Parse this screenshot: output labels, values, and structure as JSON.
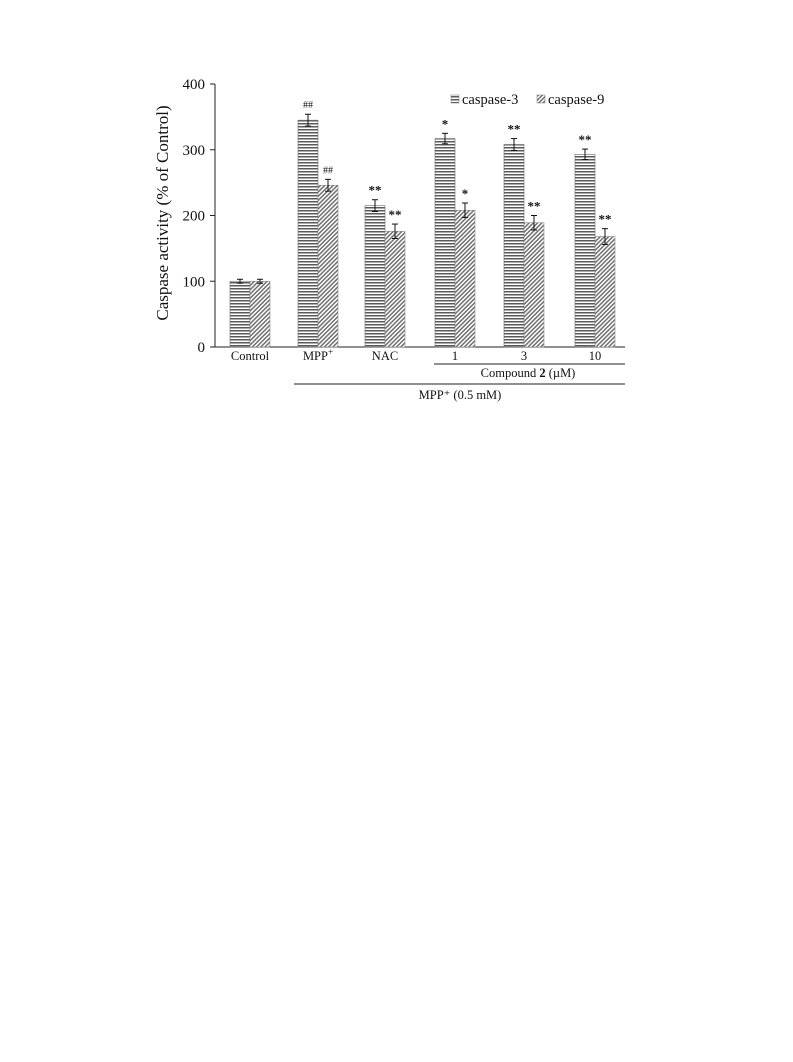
{
  "chart_data": {
    "type": "bar",
    "ylabel": "Caspase activity (% of Control)",
    "ylim": [
      0,
      400
    ],
    "yticks": [
      0,
      100,
      200,
      300,
      400
    ],
    "categories": [
      "Control",
      "MPP+",
      "NAC",
      "1",
      "3",
      "10"
    ],
    "series": [
      {
        "name": "caspase-3",
        "values": [
          100,
          345,
          215,
          317,
          308,
          293
        ],
        "errors": [
          3,
          9,
          9,
          8,
          9,
          8
        ],
        "markers": [
          "",
          "##",
          "**",
          "*",
          "**",
          "**"
        ]
      },
      {
        "name": "caspase-9",
        "values": [
          100,
          246,
          176,
          208,
          189,
          168
        ],
        "errors": [
          3,
          9,
          11,
          11,
          11,
          12
        ],
        "markers": [
          "",
          "##",
          "**",
          "*",
          "**",
          "**"
        ]
      }
    ],
    "grouping": {
      "compound_label": {
        "prefix": "Compound ",
        "bold": "2",
        "suffix": " (µM)"
      },
      "outer_label": "MPP⁺ (0.5 mM)"
    },
    "legend": {
      "placement": "top-right"
    },
    "grid": false
  }
}
